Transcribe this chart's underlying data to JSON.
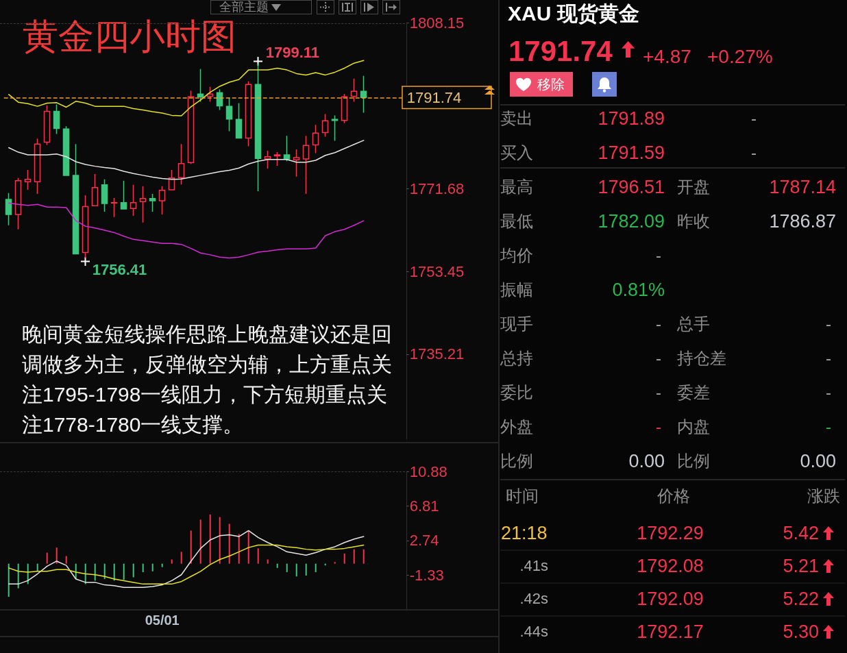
{
  "chart_data": [
    {
      "type": "candlestick",
      "title": "黄金四小时图",
      "categories": [
        null,
        null,
        null,
        null,
        null,
        null,
        null,
        null,
        null,
        null,
        null,
        null,
        null,
        null,
        null,
        null,
        null,
        null,
        null,
        null,
        null,
        null,
        null,
        null,
        null,
        null,
        null,
        null,
        null,
        null,
        null,
        null,
        null,
        null,
        null,
        null,
        null,
        null,
        null,
        null,
        null,
        null
      ],
      "ohlc": [
        [
          1769.3,
          1770.7,
          1763.6,
          1766.0
        ],
        [
          1766.0,
          1774.0,
          1762.7,
          1773.4
        ],
        [
          1773.2,
          1775.8,
          1771.4,
          1773.7
        ],
        [
          1773.2,
          1782.7,
          1770.5,
          1781.5
        ],
        [
          1781.9,
          1790.0,
          1781.3,
          1788.7
        ],
        [
          1788.7,
          1790.2,
          1783.7,
          1784.9
        ],
        [
          1784.8,
          1785.4,
          1774.6,
          1774.6
        ],
        [
          1774.6,
          1781.5,
          1757.3,
          1757.3
        ],
        [
          1757.6,
          1770.2,
          1756.41,
          1767.7
        ],
        [
          1767.9,
          1774.9,
          1767.9,
          1771.9
        ],
        [
          1772.5,
          1773.7,
          1766.6,
          1768.4
        ],
        [
          1768.5,
          1769.6,
          1765.4,
          1768.6
        ],
        [
          1768.6,
          1773.4,
          1767.2,
          1767.2
        ],
        [
          1767.3,
          1772.5,
          1765.7,
          1768.6
        ],
        [
          1768.8,
          1772.2,
          1764.2,
          1769.5
        ],
        [
          1769.5,
          1770.5,
          1766.6,
          1769.0
        ],
        [
          1769.0,
          1772.2,
          1766.0,
          1771.3
        ],
        [
          1771.4,
          1775.8,
          1771.4,
          1774.0
        ],
        [
          1774.1,
          1781.5,
          1772.6,
          1777.2
        ],
        [
          1777.4,
          1793.2,
          1777.1,
          1791.9
        ],
        [
          1792.5,
          1798.0,
          1790.8,
          1791.9
        ],
        [
          1792.0,
          1794.1,
          1790.8,
          1792.5
        ],
        [
          1792.8,
          1793.5,
          1789.0,
          1789.9
        ],
        [
          1789.8,
          1791.8,
          1784.3,
          1787.0
        ],
        [
          1786.9,
          1790.5,
          1782.8,
          1782.8
        ],
        [
          1782.8,
          1795.3,
          1781.0,
          1794.6
        ],
        [
          1794.6,
          1799.11,
          1771.1,
          1778.3
        ],
        [
          1778.2,
          1780.0,
          1776.1,
          1778.7
        ],
        [
          1778.9,
          1779.7,
          1776.7,
          1779.1
        ],
        [
          1779.1,
          1783.3,
          1777.7,
          1778.2
        ],
        [
          1778.0,
          1780.3,
          1774.3,
          1778.5
        ],
        [
          1778.2,
          1783.3,
          1770.5,
          1781.2
        ],
        [
          1781.3,
          1785.7,
          1779.5,
          1783.9
        ],
        [
          1784.0,
          1788.1,
          1783.1,
          1786.6
        ],
        [
          1786.9,
          1787.8,
          1782.2,
          1786.7
        ],
        [
          1786.7,
          1792.5,
          1786.1,
          1791.9
        ],
        [
          1792.0,
          1795.9,
          1790.8,
          1793.1
        ],
        [
          1793.1,
          1796.5,
          1788.4,
          1791.74
        ],
        null,
        null,
        null,
        null
      ],
      "colors": [
        "#3ec47e",
        "#f5334f",
        "#f5334f",
        "#f5334f",
        "#f5334f",
        "#3ec47e",
        "#3ec47e",
        "#3ec47e",
        "#f5334f",
        "#f5334f",
        "#3ec47e",
        "#f5334f",
        "#3ec47e",
        "#f5334f",
        "#f5334f",
        "#3ec47e",
        "#f5334f",
        "#f5334f",
        "#f5334f",
        "#f5334f",
        "#3ec47e",
        "#f5334f",
        "#3ec47e",
        "#3ec47e",
        "#3ec47e",
        "#f5334f",
        "#3ec47e",
        "#f5334f",
        "#f5334f",
        "#3ec47e",
        "#f5334f",
        "#f5334f",
        "#f5334f",
        "#f5334f",
        "#3ec47e",
        "#f5334f",
        "#f5334f",
        "#3ec47e",
        null,
        null,
        null,
        null
      ],
      "series": [
        {
          "type": "line",
          "color": "#e6e41e",
          "values": [
            1792.4,
            1790.7,
            1790.4,
            1789.8,
            1790.5,
            1790.6,
            1789.6,
            1790.9,
            1790.5,
            1789.8,
            1789.8,
            1789.8,
            1789.8,
            1789.3,
            1789.0,
            1788.6,
            1788.3,
            1787.8,
            1787.7,
            1789.7,
            1791.2,
            1792.9,
            1794.2,
            1795.1,
            1795.7,
            1797.8,
            1797.8,
            1797.8,
            1798.2,
            1797.8,
            1797.0,
            1796.7,
            1797.2,
            1796.7,
            1797.3,
            1798.2,
            1799.3,
            1799.9,
            null,
            null,
            null,
            null
          ]
        },
        {
          "type": "line",
          "color": "#e6e6e6",
          "values": [
            1780.7,
            1779.7,
            1779.1,
            1779.1,
            1779.1,
            1779.3,
            1778.7,
            1777.6,
            1777.0,
            1776.6,
            1776.3,
            1776.1,
            1775.5,
            1775.0,
            1774.6,
            1774.2,
            1773.9,
            1773.7,
            1773.8,
            1774.2,
            1774.6,
            1775.0,
            1775.4,
            1775.7,
            1776.2,
            1777.1,
            1777.7,
            1778.1,
            1778.1,
            1778.1,
            1777.5,
            1777.5,
            1777.9,
            1779.0,
            1779.6,
            1780.5,
            1781.4,
            1782.3,
            null,
            null,
            null,
            null
          ]
        },
        {
          "type": "line",
          "color": "#d62ad6",
          "values": [
            1768.5,
            1768.2,
            1768.0,
            1768.2,
            1767.6,
            1767.6,
            1767.5,
            1764.6,
            1763.4,
            1763.0,
            1762.5,
            1762.0,
            1761.2,
            1760.5,
            1760.2,
            1759.9,
            1759.6,
            1759.6,
            1759.4,
            1758.5,
            1757.5,
            1757.1,
            1756.6,
            1756.4,
            1756.6,
            1757.1,
            1757.7,
            1757.9,
            1758.2,
            1758.4,
            1758.4,
            1758.4,
            1758.6,
            1761.3,
            1762.2,
            1762.7,
            1763.6,
            1764.6,
            null,
            null,
            null,
            null
          ]
        }
      ],
      "ylim": [
        1716.5,
        1808.15
      ],
      "yticks": [
        1808.15,
        1771.68,
        1753.45,
        1735.21
      ],
      "ref_lines": [
        {
          "axis": "y",
          "value": 1791.74,
          "label": "1791.74",
          "color": "#f0a030",
          "line_style": "dashed"
        }
      ],
      "annotations": [
        "全部主题",
        "1799.11",
        "1756.41",
        "晚间黄金短线操作思路上晚盘建议还是回调做多为主，反弹做空为辅，上方重点关注1795-1798一线阻力，下方短期重点关注1778-1780一线支撑。"
      ],
      "marker": "none"
    },
    {
      "type": "bar",
      "categories": [
        null,
        null,
        null,
        null,
        null,
        null,
        null,
        null,
        null,
        null,
        null,
        null,
        null,
        null,
        null,
        null,
        "05/01",
        null,
        null,
        null,
        null,
        null,
        null,
        null,
        null,
        null,
        null,
        null,
        null,
        null,
        null,
        null,
        null,
        null,
        null,
        null,
        null,
        null,
        null,
        null,
        null,
        null
      ],
      "series": [
        {
          "type": "bar",
          "values": [
            -3.9,
            -2.9,
            -2.4,
            -0.9,
            1.3,
            1.9,
            0.9,
            -1.8,
            -2.4,
            -2.0,
            -1.8,
            -2.0,
            -1.9,
            -1.6,
            -1.0,
            -0.9,
            -0.4,
            0.5,
            1.4,
            3.9,
            5.2,
            5.8,
            5.5,
            4.7,
            3.5,
            3.9,
            1.8,
            0.5,
            -0.5,
            -1.0,
            -1.5,
            -1.4,
            -1.0,
            -0.2,
            0.2,
            1.2,
            1.7,
            1.7,
            null,
            null,
            null,
            null
          ],
          "colors": [
            "#3ec47e",
            "#3ec47e",
            "#3ec47e",
            "#3ec47e",
            "#f5334f",
            "#f5334f",
            "#f5334f",
            "#3ec47e",
            "#3ec47e",
            "#3ec47e",
            "#3ec47e",
            "#3ec47e",
            "#3ec47e",
            "#3ec47e",
            "#3ec47e",
            "#3ec47e",
            "#3ec47e",
            "#f5334f",
            "#f5334f",
            "#f5334f",
            "#f5334f",
            "#f5334f",
            "#f5334f",
            "#f5334f",
            "#f5334f",
            "#f5334f",
            "#f5334f",
            "#f5334f",
            "#3ec47e",
            "#3ec47e",
            "#3ec47e",
            "#3ec47e",
            "#3ec47e",
            "#3ec47e",
            "#f5334f",
            "#f5334f",
            "#f5334f",
            "#f5334f",
            null,
            null,
            null,
            null
          ]
        },
        {
          "type": "line",
          "color": "#e6e6e6",
          "values": [
            -2.4,
            -2.4,
            -2.0,
            -1.2,
            -0.3,
            0.3,
            -0.2,
            -1.8,
            -2.2,
            -2.2,
            -2.5,
            -2.6,
            -2.8,
            -2.8,
            -2.8,
            -2.7,
            -2.5,
            -2.0,
            -1.3,
            0.3,
            1.8,
            2.8,
            3.3,
            3.4,
            3.2,
            3.9,
            3.1,
            2.5,
            2.0,
            1.4,
            1.2,
            1.0,
            1.3,
            1.7,
            2.0,
            2.5,
            2.9,
            3.2,
            null,
            null,
            null,
            null
          ]
        },
        {
          "type": "line",
          "color": "#e6e41e",
          "values": [
            -0.5,
            -0.9,
            -1.0,
            -0.9,
            -0.9,
            -0.7,
            -0.7,
            -1.0,
            -1.2,
            -1.3,
            -1.5,
            -1.8,
            -2.0,
            -2.2,
            -2.4,
            -2.4,
            -2.4,
            -2.4,
            -2.1,
            -1.5,
            -0.9,
            -0.1,
            0.5,
            0.9,
            1.4,
            1.9,
            2.2,
            2.2,
            2.2,
            2.0,
            1.9,
            1.7,
            1.6,
            1.7,
            1.7,
            1.8,
            2.0,
            2.2,
            null,
            null,
            null,
            null
          ]
        }
      ],
      "ylim": [
        -5.4,
        10.88
      ],
      "yticks": [
        10.88,
        6.81,
        2.74,
        -1.33
      ],
      "marker": "none"
    },
    {
      "type": "other",
      "title": "XAU 现货黄金",
      "annotations": [
        "1791.74",
        "+4.87",
        "+0.27%",
        "移除",
        "卖出",
        "1791.89",
        "-",
        "买入",
        "1791.59",
        "-",
        "最高",
        "1796.51",
        "开盘",
        "1787.14",
        "最低",
        "1782.09",
        "昨收",
        "1786.87",
        "均价",
        "-",
        "振幅",
        "0.81%",
        "现手",
        "-",
        "总手",
        "-",
        "总持",
        "-",
        "持仓差",
        "-",
        "委比",
        "-",
        "委差",
        "-",
        "外盘",
        "-",
        "内盘",
        "-",
        "比例",
        "0.00",
        "比例",
        "0.00",
        "时间",
        "价格",
        "涨跌",
        "21:18",
        "1792.29",
        "5.42",
        ".41s",
        "1792.08",
        "5.21",
        ".42s",
        "1792.09",
        "5.22",
        ".44s",
        "1792.17",
        "5.30"
      ]
    }
  ]
}
